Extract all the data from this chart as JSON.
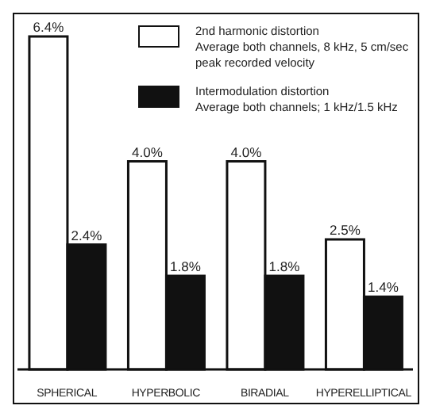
{
  "chart_data": {
    "type": "bar",
    "categories": [
      "SPHERICAL",
      "HYPERBOLIC",
      "BIRADIAL",
      "HYPERELLIPTICAL"
    ],
    "series": [
      {
        "name": "2nd harmonic distortion",
        "color": "#ffffff",
        "values": [
          6.4,
          4.0,
          4.0,
          2.5
        ],
        "value_labels": [
          "6.4%",
          "4.0%",
          "4.0%",
          "2.5%"
        ]
      },
      {
        "name": "Intermodulation distortion",
        "color": "#111111",
        "values": [
          2.4,
          1.8,
          1.8,
          1.4
        ],
        "value_labels": [
          "2.4%",
          "1.8%",
          "1.8%",
          "1.4%"
        ]
      }
    ],
    "annotations": [
      "Average both channels, 8 kHz, 5 cm/sec peak recorded velocity",
      "Average both channels; 1 kHz/1.5 kHz"
    ],
    "legend": "top right",
    "grid": false
  }
}
